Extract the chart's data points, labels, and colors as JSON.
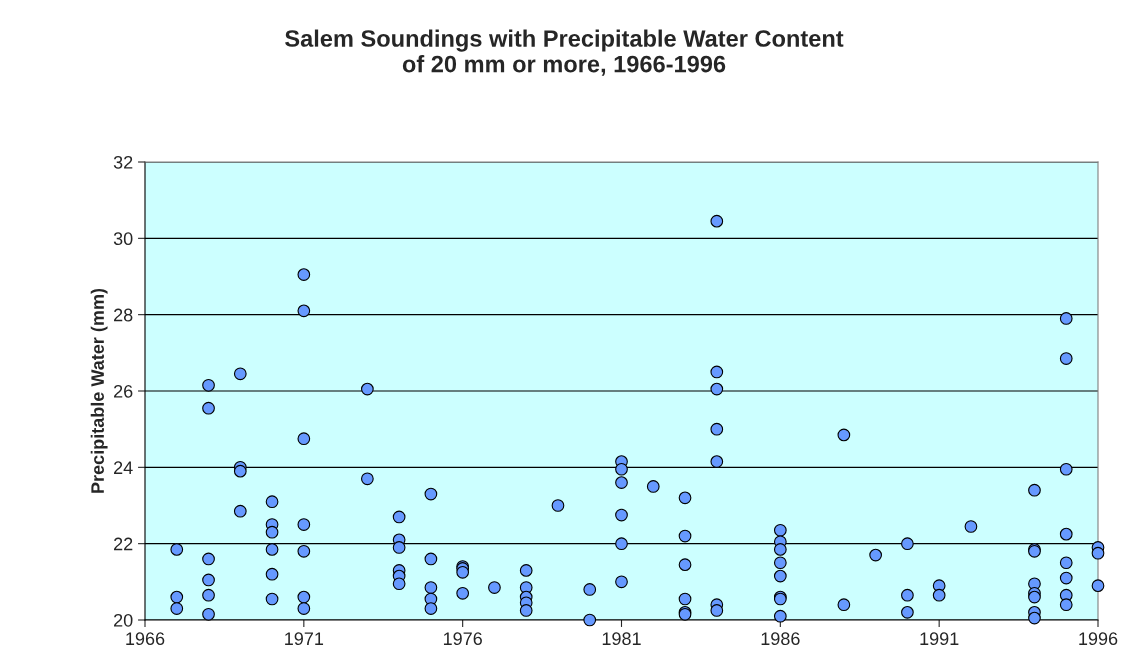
{
  "chart_data": {
    "type": "scatter",
    "title": "Salem Soundings with Precipitable Water Content\nof 20 mm or more, 1966-1996",
    "ylabel": "Precipitable Water (mm)",
    "x": [
      1967,
      1967,
      1967,
      1968,
      1968,
      1968,
      1968,
      1968,
      1968,
      1969,
      1969,
      1969,
      1969,
      1970,
      1970,
      1970,
      1970,
      1970,
      1970,
      1971,
      1971,
      1971,
      1971,
      1971,
      1971,
      1971,
      1973,
      1973,
      1974,
      1974,
      1974,
      1974,
      1974,
      1974,
      1975,
      1975,
      1975,
      1975,
      1975,
      1976,
      1976,
      1976,
      1976,
      1977,
      1978,
      1978,
      1978,
      1978,
      1978,
      1979,
      1980,
      1980,
      1981,
      1981,
      1981,
      1981,
      1981,
      1981,
      1982,
      1983,
      1983,
      1983,
      1983,
      1983,
      1983,
      1984,
      1984,
      1984,
      1984,
      1984,
      1984,
      1984,
      1986,
      1986,
      1986,
      1986,
      1986,
      1986,
      1986,
      1986,
      1988,
      1988,
      1989,
      1990,
      1990,
      1990,
      1991,
      1991,
      1992,
      1994,
      1994,
      1994,
      1994,
      1994,
      1994,
      1994,
      1994,
      1995,
      1995,
      1995,
      1995,
      1995,
      1995,
      1995,
      1995,
      1996,
      1996,
      1996
    ],
    "values": [
      21.85,
      20.6,
      20.3,
      26.15,
      25.55,
      21.6,
      21.05,
      20.65,
      20.15,
      26.45,
      24.0,
      23.9,
      22.85,
      23.1,
      22.5,
      22.3,
      21.85,
      21.2,
      20.55,
      29.05,
      28.1,
      24.75,
      22.5,
      21.8,
      20.6,
      20.3,
      26.05,
      23.7,
      22.7,
      22.1,
      21.9,
      21.3,
      21.15,
      20.95,
      23.3,
      21.6,
      20.85,
      20.55,
      20.3,
      21.4,
      21.35,
      21.25,
      20.7,
      20.85,
      21.3,
      20.85,
      20.6,
      20.45,
      20.25,
      23.0,
      20.8,
      20.0,
      24.15,
      23.95,
      23.6,
      22.75,
      22.0,
      21.0,
      23.5,
      23.2,
      22.2,
      21.45,
      20.55,
      20.2,
      20.15,
      30.45,
      26.5,
      26.05,
      25.0,
      24.15,
      20.4,
      20.25,
      22.35,
      22.05,
      21.85,
      21.5,
      21.15,
      20.6,
      20.55,
      20.1,
      24.85,
      20.4,
      21.7,
      22.0,
      20.65,
      20.2,
      20.9,
      20.65,
      22.45,
      23.4,
      21.85,
      21.8,
      20.95,
      20.7,
      20.6,
      20.2,
      20.05,
      27.9,
      26.85,
      23.95,
      22.25,
      21.5,
      21.1,
      20.65,
      20.4,
      21.9,
      21.75,
      20.9
    ],
    "color": "#6699ff",
    "marker": "circle",
    "grid": "y",
    "xlim": [
      1966,
      1996
    ],
    "xticks": [
      1966,
      1971,
      1976,
      1981,
      1986,
      1991,
      1996
    ],
    "ylim": [
      20,
      32
    ],
    "yticks": [
      20,
      22,
      24,
      26,
      28,
      30,
      32
    ]
  }
}
